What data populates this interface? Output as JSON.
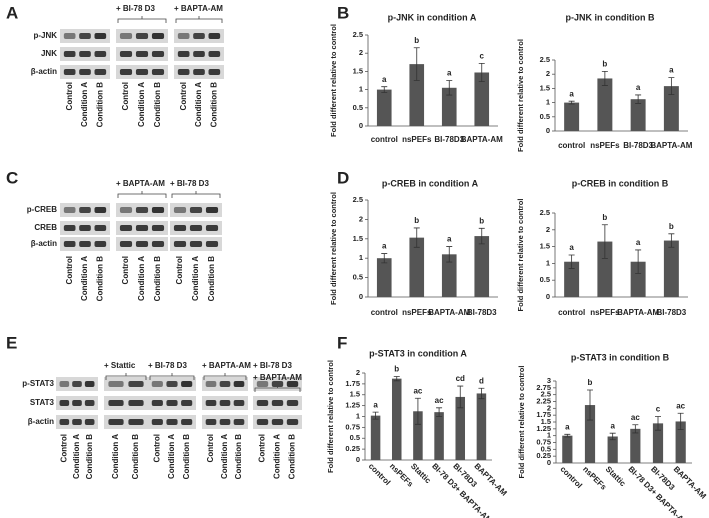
{
  "panel_labels": [
    "A",
    "B",
    "C",
    "D",
    "E",
    "F"
  ],
  "blots": [
    {
      "rows": [
        "p-JNK",
        "JNK",
        "β-actin"
      ],
      "groups": [
        {
          "lanes": [
            "Control",
            "Condition A",
            "Condition B"
          ]
        },
        {
          "header": [
            "+ BI-78 D3"
          ],
          "lanes": [
            "Control",
            "Condition A",
            "Condition B"
          ]
        },
        {
          "header": [
            "+ BAPTA-AM"
          ],
          "lanes": [
            "Control",
            "Condition A",
            "Condition B"
          ]
        }
      ]
    },
    {
      "rows": [
        "p-CREB",
        "CREB",
        "β-actin"
      ],
      "groups": [
        {
          "lanes": [
            "Control",
            "Condition A",
            "Condition B"
          ]
        },
        {
          "header": [
            "+ BAPTA-AM"
          ],
          "lanes": [
            "Control",
            "Condition A",
            "Condition B"
          ]
        },
        {
          "header": [
            "+ BI-78 D3"
          ],
          "lanes": [
            "Control",
            "Condition A",
            "Condition B"
          ]
        }
      ]
    },
    {
      "rows": [
        "p-STAT3",
        "STAT3",
        "β-actin"
      ],
      "groups": [
        {
          "lanes": [
            "Control",
            "Condition A",
            "Condition B"
          ]
        },
        {
          "header": [
            "+ Stattic"
          ],
          "lanes": [
            "Condition A",
            "Condition B"
          ]
        },
        {
          "header": [
            "+ BI-78 D3"
          ],
          "lanes": [
            "Control",
            "Condition A",
            "Condition B"
          ]
        },
        {
          "header": [
            "+ BAPTA-AM"
          ],
          "lanes": [
            "Control",
            "Condition A",
            "Condition B"
          ]
        },
        {
          "header": [
            "+ BI-78 D3",
            "+ BAPTA-AM"
          ],
          "lanes": [
            "Control",
            "Condition A",
            "Condition B"
          ]
        }
      ]
    }
  ],
  "chart_data": [
    {
      "type": "bar",
      "title": "p-JNK in condition A",
      "y_label": "Fold different relative to control",
      "categories": [
        "control",
        "nsPEFs",
        "BI-78D3",
        "BAPTA-AM"
      ],
      "values": [
        1.0,
        1.7,
        1.05,
        1.47
      ],
      "errors": [
        0.08,
        0.45,
        0.2,
        0.25
      ],
      "letters": [
        "a",
        "b",
        "a",
        "c"
      ],
      "color": "#555555",
      "ylim": [
        0,
        2.5
      ],
      "yticks": [
        0,
        0.5,
        1,
        1.5,
        2,
        2.5
      ]
    },
    {
      "type": "bar",
      "title": "p-JNK in condition B",
      "y_label": "Fold different relative to control",
      "categories": [
        "control",
        "nsPEFs",
        "BI-78D3",
        "BAPTA-AM"
      ],
      "values": [
        1.0,
        1.85,
        1.12,
        1.58
      ],
      "errors": [
        0.05,
        0.25,
        0.15,
        0.3
      ],
      "letters": [
        "a",
        "b",
        "a",
        "a"
      ],
      "color": "#555555",
      "ylim": [
        0,
        2.5
      ],
      "yticks": [
        0,
        0.5,
        1,
        1.5,
        2,
        2.5
      ]
    },
    {
      "type": "bar",
      "title": "p-CREB in condition A",
      "y_label": "Fold different relative to control",
      "categories": [
        "control",
        "nsPEFs",
        "BAPTA-AM",
        "BI-78D3"
      ],
      "values": [
        1.0,
        1.53,
        1.1,
        1.57
      ],
      "errors": [
        0.12,
        0.25,
        0.2,
        0.2
      ],
      "letters": [
        "a",
        "b",
        "a",
        "b"
      ],
      "color": "#555555",
      "ylim": [
        0,
        2.5
      ],
      "yticks": [
        0,
        0.5,
        1,
        1.5,
        2,
        2.5
      ]
    },
    {
      "type": "bar",
      "title": "p-CREB in condition B",
      "y_label": "Fold different relative to control",
      "categories": [
        "control",
        "nsPEFs",
        "BAPTA-AM",
        "BI-78D3"
      ],
      "values": [
        1.05,
        1.65,
        1.05,
        1.68
      ],
      "errors": [
        0.2,
        0.5,
        0.35,
        0.2
      ],
      "letters": [
        "a",
        "b",
        "a",
        "b"
      ],
      "color": "#555555",
      "ylim": [
        0,
        2.5
      ],
      "yticks": [
        0,
        0.5,
        1,
        1.5,
        2,
        2.5
      ]
    },
    {
      "type": "bar",
      "title": "p-STAT3 in condition A",
      "y_label": "Fold different relative to control",
      "categories": [
        "control",
        "nsPEFs",
        "Stattic",
        "BI-78 D3+ BAPTA-AM",
        "BI-78D3",
        "BAPTA-AM"
      ],
      "values": [
        1.02,
        1.87,
        1.12,
        1.1,
        1.45,
        1.53
      ],
      "errors": [
        0.08,
        0.05,
        0.3,
        0.1,
        0.25,
        0.12
      ],
      "letters": [
        "a",
        "b",
        "ac",
        "ac",
        "cd",
        "d"
      ],
      "color": "#555555",
      "ylim": [
        0,
        2
      ],
      "yticks": [
        0,
        0.25,
        0.5,
        0.75,
        1,
        1.25,
        1.5,
        1.75,
        2
      ]
    },
    {
      "type": "bar",
      "title": "p-STAT3 in condition B",
      "y_label": "Fold different relative to control",
      "categories": [
        "control",
        "nsPEFs",
        "Stattic",
        "BI-78 D3+ BAPTA-AM",
        "BI-78D3",
        "BAPTA-AM"
      ],
      "values": [
        1.0,
        2.12,
        0.97,
        1.25,
        1.45,
        1.52
      ],
      "errors": [
        0.05,
        0.55,
        0.12,
        0.15,
        0.25,
        0.3
      ],
      "letters": [
        "a",
        "b",
        "a",
        "ac",
        "c",
        "ac"
      ],
      "color": "#555555",
      "ylim": [
        0,
        3
      ],
      "yticks": [
        0,
        0.25,
        0.5,
        0.75,
        1,
        1.25,
        1.5,
        1.75,
        2,
        2.25,
        2.5,
        2.75,
        3
      ]
    }
  ]
}
